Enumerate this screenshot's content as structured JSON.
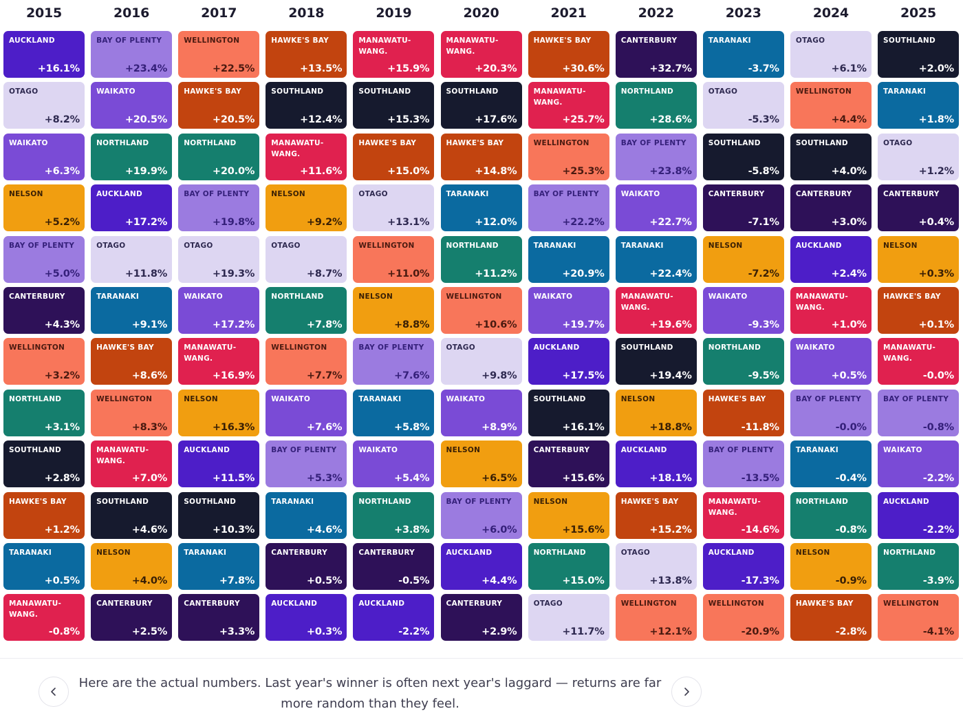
{
  "colors": {
    "AUCKLAND": {
      "bg": "#4d1ec8",
      "fg": "#ffffff"
    },
    "BAY OF PLENTY": {
      "bg": "#9b7be0",
      "fg": "#35207a"
    },
    "WELLINGTON": {
      "bg": "#f8765a",
      "fg": "#4a1a10"
    },
    "HAWKE'S BAY": {
      "bg": "#c2440f",
      "fg": "#ffffff"
    },
    "MANAWATU-WANG.": {
      "bg": "#e0214f",
      "fg": "#ffffff"
    },
    "CANTERBURY": {
      "bg": "#2e1158",
      "fg": "#ffffff"
    },
    "TARANAKI": {
      "bg": "#0b6aa0",
      "fg": "#ffffff"
    },
    "OTAGO": {
      "bg": "#ddd6f2",
      "fg": "#2e2950"
    },
    "SOUTHLAND": {
      "bg": "#161a2e",
      "fg": "#ffffff"
    },
    "WAIKATO": {
      "bg": "#7a4bd6",
      "fg": "#ffffff"
    },
    "NORTHLAND": {
      "bg": "#157f6e",
      "fg": "#ffffff"
    },
    "NELSON": {
      "bg": "#f19e10",
      "fg": "#3a2005"
    }
  },
  "chart_data": {
    "type": "table",
    "years": [
      "2015",
      "2016",
      "2017",
      "2018",
      "2019",
      "2020",
      "2021",
      "2022",
      "2023",
      "2024",
      "2025"
    ],
    "columns": [
      [
        {
          "region": "AUCKLAND",
          "value": "+16.1%"
        },
        {
          "region": "OTAGO",
          "value": "+8.2%"
        },
        {
          "region": "WAIKATO",
          "value": "+6.3%"
        },
        {
          "region": "NELSON",
          "value": "+5.2%"
        },
        {
          "region": "BAY OF PLENTY",
          "value": "+5.0%"
        },
        {
          "region": "CANTERBURY",
          "value": "+4.3%"
        },
        {
          "region": "WELLINGTON",
          "value": "+3.2%"
        },
        {
          "region": "NORTHLAND",
          "value": "+3.1%"
        },
        {
          "region": "SOUTHLAND",
          "value": "+2.8%"
        },
        {
          "region": "HAWKE'S BAY",
          "value": "+1.2%"
        },
        {
          "region": "TARANAKI",
          "value": "+0.5%"
        },
        {
          "region": "MANAWATU-WANG.",
          "value": "-0.8%"
        }
      ],
      [
        {
          "region": "BAY OF PLENTY",
          "value": "+23.4%"
        },
        {
          "region": "WAIKATO",
          "value": "+20.5%"
        },
        {
          "region": "NORTHLAND",
          "value": "+19.9%"
        },
        {
          "region": "AUCKLAND",
          "value": "+17.2%"
        },
        {
          "region": "OTAGO",
          "value": "+11.8%"
        },
        {
          "region": "TARANAKI",
          "value": "+9.1%"
        },
        {
          "region": "HAWKE'S BAY",
          "value": "+8.6%"
        },
        {
          "region": "WELLINGTON",
          "value": "+8.3%"
        },
        {
          "region": "MANAWATU-WANG.",
          "value": "+7.0%"
        },
        {
          "region": "SOUTHLAND",
          "value": "+4.6%"
        },
        {
          "region": "NELSON",
          "value": "+4.0%"
        },
        {
          "region": "CANTERBURY",
          "value": "+2.5%"
        }
      ],
      [
        {
          "region": "WELLINGTON",
          "value": "+22.5%"
        },
        {
          "region": "HAWKE'S BAY",
          "value": "+20.5%"
        },
        {
          "region": "NORTHLAND",
          "value": "+20.0%"
        },
        {
          "region": "BAY OF PLENTY",
          "value": "+19.8%"
        },
        {
          "region": "OTAGO",
          "value": "+19.3%"
        },
        {
          "region": "WAIKATO",
          "value": "+17.2%"
        },
        {
          "region": "MANAWATU-WANG.",
          "value": "+16.9%"
        },
        {
          "region": "NELSON",
          "value": "+16.3%"
        },
        {
          "region": "AUCKLAND",
          "value": "+11.5%"
        },
        {
          "region": "SOUTHLAND",
          "value": "+10.3%"
        },
        {
          "region": "TARANAKI",
          "value": "+7.8%"
        },
        {
          "region": "CANTERBURY",
          "value": "+3.3%"
        }
      ],
      [
        {
          "region": "HAWKE'S BAY",
          "value": "+13.5%"
        },
        {
          "region": "SOUTHLAND",
          "value": "+12.4%"
        },
        {
          "region": "MANAWATU-WANG.",
          "value": "+11.6%"
        },
        {
          "region": "NELSON",
          "value": "+9.2%"
        },
        {
          "region": "OTAGO",
          "value": "+8.7%"
        },
        {
          "region": "NORTHLAND",
          "value": "+7.8%"
        },
        {
          "region": "WELLINGTON",
          "value": "+7.7%"
        },
        {
          "region": "WAIKATO",
          "value": "+7.6%"
        },
        {
          "region": "BAY OF PLENTY",
          "value": "+5.3%"
        },
        {
          "region": "TARANAKI",
          "value": "+4.6%"
        },
        {
          "region": "CANTERBURY",
          "value": "+0.5%"
        },
        {
          "region": "AUCKLAND",
          "value": "+0.3%"
        }
      ],
      [
        {
          "region": "MANAWATU-WANG.",
          "value": "+15.9%"
        },
        {
          "region": "SOUTHLAND",
          "value": "+15.3%"
        },
        {
          "region": "HAWKE'S BAY",
          "value": "+15.0%"
        },
        {
          "region": "OTAGO",
          "value": "+13.1%"
        },
        {
          "region": "WELLINGTON",
          "value": "+11.0%"
        },
        {
          "region": "NELSON",
          "value": "+8.8%"
        },
        {
          "region": "BAY OF PLENTY",
          "value": "+7.6%"
        },
        {
          "region": "TARANAKI",
          "value": "+5.8%"
        },
        {
          "region": "WAIKATO",
          "value": "+5.4%"
        },
        {
          "region": "NORTHLAND",
          "value": "+3.8%"
        },
        {
          "region": "CANTERBURY",
          "value": "-0.5%"
        },
        {
          "region": "AUCKLAND",
          "value": "-2.2%"
        }
      ],
      [
        {
          "region": "MANAWATU-WANG.",
          "value": "+20.3%"
        },
        {
          "region": "SOUTHLAND",
          "value": "+17.6%"
        },
        {
          "region": "HAWKE'S BAY",
          "value": "+14.8%"
        },
        {
          "region": "TARANAKI",
          "value": "+12.0%"
        },
        {
          "region": "NORTHLAND",
          "value": "+11.2%"
        },
        {
          "region": "WELLINGTON",
          "value": "+10.6%"
        },
        {
          "region": "OTAGO",
          "value": "+9.8%"
        },
        {
          "region": "WAIKATO",
          "value": "+8.9%"
        },
        {
          "region": "NELSON",
          "value": "+6.5%"
        },
        {
          "region": "BAY OF PLENTY",
          "value": "+6.0%"
        },
        {
          "region": "AUCKLAND",
          "value": "+4.4%"
        },
        {
          "region": "CANTERBURY",
          "value": "+2.9%"
        }
      ],
      [
        {
          "region": "HAWKE'S BAY",
          "value": "+30.6%"
        },
        {
          "region": "MANAWATU-WANG.",
          "value": "+25.7%"
        },
        {
          "region": "WELLINGTON",
          "value": "+25.3%"
        },
        {
          "region": "BAY OF PLENTY",
          "value": "+22.2%"
        },
        {
          "region": "TARANAKI",
          "value": "+20.9%"
        },
        {
          "region": "WAIKATO",
          "value": "+19.7%"
        },
        {
          "region": "AUCKLAND",
          "value": "+17.5%"
        },
        {
          "region": "SOUTHLAND",
          "value": "+16.1%"
        },
        {
          "region": "CANTERBURY",
          "value": "+15.6%"
        },
        {
          "region": "NELSON",
          "value": "+15.6%"
        },
        {
          "region": "NORTHLAND",
          "value": "+15.0%"
        },
        {
          "region": "OTAGO",
          "value": "+11.7%"
        }
      ],
      [
        {
          "region": "CANTERBURY",
          "value": "+32.7%"
        },
        {
          "region": "NORTHLAND",
          "value": "+28.6%"
        },
        {
          "region": "BAY OF PLENTY",
          "value": "+23.8%"
        },
        {
          "region": "WAIKATO",
          "value": "+22.7%"
        },
        {
          "region": "TARANAKI",
          "value": "+22.4%"
        },
        {
          "region": "MANAWATU-WANG.",
          "value": "+19.6%"
        },
        {
          "region": "SOUTHLAND",
          "value": "+19.4%"
        },
        {
          "region": "NELSON",
          "value": "+18.8%"
        },
        {
          "region": "AUCKLAND",
          "value": "+18.1%"
        },
        {
          "region": "HAWKE'S BAY",
          "value": "+15.2%"
        },
        {
          "region": "OTAGO",
          "value": "+13.8%"
        },
        {
          "region": "WELLINGTON",
          "value": "+12.1%"
        }
      ],
      [
        {
          "region": "TARANAKI",
          "value": "-3.7%"
        },
        {
          "region": "OTAGO",
          "value": "-5.3%"
        },
        {
          "region": "SOUTHLAND",
          "value": "-5.8%"
        },
        {
          "region": "CANTERBURY",
          "value": "-7.1%"
        },
        {
          "region": "NELSON",
          "value": "-7.2%"
        },
        {
          "region": "WAIKATO",
          "value": "-9.3%"
        },
        {
          "region": "NORTHLAND",
          "value": "-9.5%"
        },
        {
          "region": "HAWKE'S BAY",
          "value": "-11.8%"
        },
        {
          "region": "BAY OF PLENTY",
          "value": "-13.5%"
        },
        {
          "region": "MANAWATU-WANG.",
          "value": "-14.6%"
        },
        {
          "region": "AUCKLAND",
          "value": "-17.3%"
        },
        {
          "region": "WELLINGTON",
          "value": "-20.9%"
        }
      ],
      [
        {
          "region": "OTAGO",
          "value": "+6.1%"
        },
        {
          "region": "WELLINGTON",
          "value": "+4.4%"
        },
        {
          "region": "SOUTHLAND",
          "value": "+4.0%"
        },
        {
          "region": "CANTERBURY",
          "value": "+3.0%"
        },
        {
          "region": "AUCKLAND",
          "value": "+2.4%"
        },
        {
          "region": "MANAWATU-WANG.",
          "value": "+1.0%"
        },
        {
          "region": "WAIKATO",
          "value": "+0.5%"
        },
        {
          "region": "BAY OF PLENTY",
          "value": "-0.0%"
        },
        {
          "region": "TARANAKI",
          "value": "-0.4%"
        },
        {
          "region": "NORTHLAND",
          "value": "-0.8%"
        },
        {
          "region": "NELSON",
          "value": "-0.9%"
        },
        {
          "region": "HAWKE'S BAY",
          "value": "-2.8%"
        }
      ],
      [
        {
          "region": "SOUTHLAND",
          "value": "+2.0%"
        },
        {
          "region": "TARANAKI",
          "value": "+1.8%"
        },
        {
          "region": "OTAGO",
          "value": "+1.2%"
        },
        {
          "region": "CANTERBURY",
          "value": "+0.4%"
        },
        {
          "region": "NELSON",
          "value": "+0.3%"
        },
        {
          "region": "HAWKE'S BAY",
          "value": "+0.1%"
        },
        {
          "region": "MANAWATU-WANG.",
          "value": "-0.0%"
        },
        {
          "region": "BAY OF PLENTY",
          "value": "-0.8%"
        },
        {
          "region": "WAIKATO",
          "value": "-2.2%"
        },
        {
          "region": "AUCKLAND",
          "value": "-2.2%"
        },
        {
          "region": "NORTHLAND",
          "value": "-3.9%"
        },
        {
          "region": "WELLINGTON",
          "value": "-4.1%"
        }
      ]
    ]
  },
  "footer": {
    "caption": "Here are the actual numbers. Last year's winner is often next year's laggard — returns are far more random than they feel.",
    "prev_icon": "chevron-left-icon",
    "next_icon": "chevron-right-icon"
  }
}
